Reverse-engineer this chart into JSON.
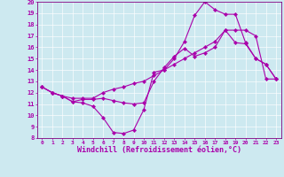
{
  "xlabel": "Windchill (Refroidissement éolien,°C)",
  "bg_color": "#cde9f0",
  "line_color": "#aa00aa",
  "xlim": [
    -0.5,
    23.5
  ],
  "ylim": [
    8,
    20
  ],
  "yticks": [
    8,
    9,
    10,
    11,
    12,
    13,
    14,
    15,
    16,
    17,
    18,
    19,
    20
  ],
  "xticks": [
    0,
    1,
    2,
    3,
    4,
    5,
    6,
    7,
    8,
    9,
    10,
    11,
    12,
    13,
    14,
    15,
    16,
    17,
    18,
    19,
    20,
    21,
    22,
    23
  ],
  "curves": [
    [
      12.5,
      12.0,
      11.7,
      11.2,
      11.1,
      10.8,
      9.8,
      8.5,
      8.4,
      8.7,
      10.5,
      13.8,
      14.0,
      15.0,
      16.5,
      18.8,
      20.0,
      19.3,
      18.9,
      18.9,
      16.4,
      15.0,
      14.5,
      13.2
    ],
    [
      12.5,
      12.0,
      11.7,
      11.2,
      11.4,
      11.4,
      11.5,
      11.3,
      11.1,
      11.0,
      11.1,
      13.0,
      14.2,
      15.2,
      15.9,
      15.2,
      15.5,
      16.0,
      17.5,
      16.4,
      16.3,
      15.0,
      14.5,
      13.2
    ],
    [
      12.5,
      12.0,
      11.7,
      11.5,
      11.5,
      11.5,
      12.0,
      12.3,
      12.5,
      12.8,
      13.0,
      13.5,
      14.0,
      14.5,
      15.0,
      15.5,
      16.0,
      16.5,
      17.5,
      17.5,
      17.5,
      17.0,
      13.2,
      13.2
    ]
  ],
  "grid_color": "#b8d8e0",
  "spine_color": "#800080",
  "tick_fontsize": 5,
  "xlabel_fontsize": 6
}
